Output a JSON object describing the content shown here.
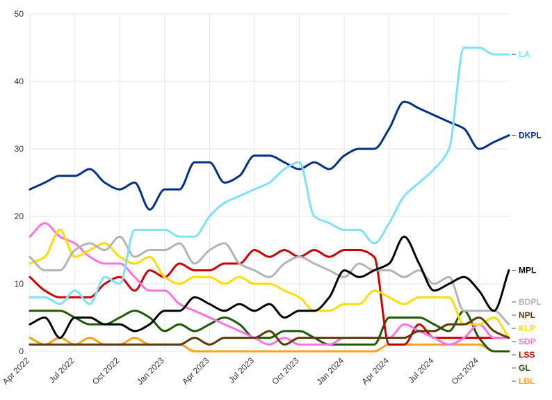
{
  "chart_data": {
    "type": "line",
    "title": "",
    "xlabel": "",
    "ylabel": "",
    "ylim": [
      0,
      50
    ],
    "y_ticks": [
      0,
      10,
      20,
      30,
      40,
      50
    ],
    "x_tick_labels": [
      "Apr 2022",
      "Jul 2022",
      "Oct 2022",
      "Jan 2023",
      "Apr 2023",
      "Jul 2023",
      "Oct 2023",
      "Jan 2024",
      "Apr 2024",
      "Jul 2024",
      "Oct 2024"
    ],
    "x_range": [
      0,
      32
    ],
    "grid": true,
    "legend": "right end labels",
    "series": [
      {
        "name": "LA",
        "color": "#7ee1f7",
        "x": [
          0,
          1,
          2,
          3,
          4,
          5,
          6,
          7,
          8,
          9,
          10,
          11,
          12,
          13,
          14,
          15,
          16,
          17,
          18,
          19,
          20,
          21,
          22,
          23,
          24,
          25,
          26,
          27,
          28,
          29,
          30,
          31,
          32
        ],
        "values": [
          8,
          8,
          7,
          9,
          7,
          11,
          10,
          18,
          18,
          18,
          17,
          17,
          20,
          22,
          23,
          24,
          25,
          27,
          28,
          20,
          19,
          18,
          18,
          16,
          19,
          23,
          25,
          27,
          30,
          45,
          45,
          44,
          44
        ]
      },
      {
        "name": "DKPL",
        "color": "#002f86",
        "x": [
          0,
          1,
          2,
          3,
          4,
          5,
          6,
          7,
          8,
          9,
          10,
          11,
          12,
          13,
          14,
          15,
          16,
          17,
          18,
          19,
          20,
          21,
          22,
          23,
          24,
          25,
          26,
          27,
          28,
          29,
          30,
          31,
          32
        ],
        "values": [
          24,
          25,
          26,
          26,
          27,
          25,
          24,
          25,
          21,
          24,
          24,
          28,
          28,
          25,
          26,
          29,
          29,
          28,
          27,
          28,
          27,
          29,
          30,
          30,
          33,
          37,
          36,
          35,
          34,
          33,
          30,
          31,
          32
        ]
      },
      {
        "name": "MPL",
        "color": "#000000",
        "x": [
          0,
          1,
          2,
          3,
          4,
          5,
          6,
          7,
          8,
          9,
          10,
          11,
          12,
          13,
          14,
          15,
          16,
          17,
          18,
          19,
          20,
          21,
          22,
          23,
          24,
          25,
          26,
          27,
          28,
          29,
          30,
          31,
          32
        ],
        "values": [
          4,
          5,
          2,
          5,
          5,
          4,
          4,
          3,
          4,
          6,
          6,
          8,
          7,
          6,
          7,
          6,
          7,
          5,
          6,
          6,
          8,
          12,
          11,
          12,
          13,
          17,
          13,
          9,
          10,
          11,
          9,
          6,
          12
        ]
      },
      {
        "name": "BDPL",
        "color": "#b4b4b4",
        "x": [
          0,
          1,
          2,
          3,
          4,
          5,
          6,
          7,
          8,
          9,
          10,
          11,
          12,
          13,
          14,
          15,
          16,
          17,
          18,
          19,
          20,
          21,
          22,
          23,
          24,
          25,
          26,
          27,
          28,
          29,
          30,
          31,
          32
        ],
        "values": [
          14,
          12,
          12,
          15,
          16,
          15,
          17,
          14,
          15,
          15,
          16,
          13,
          15,
          16,
          13,
          12,
          11,
          13,
          14,
          13,
          12,
          11,
          13,
          12,
          12,
          11,
          12,
          10,
          11,
          6,
          6,
          6,
          4
        ]
      },
      {
        "name": "NPL",
        "color": "#5a3c0a",
        "x": [
          0,
          1,
          2,
          3,
          4,
          5,
          6,
          7,
          8,
          9,
          10,
          11,
          12,
          13,
          14,
          15,
          16,
          17,
          18,
          19,
          20,
          21,
          22,
          23,
          24,
          25,
          26,
          27,
          28,
          29,
          30,
          31,
          32
        ],
        "values": [
          1,
          1,
          1,
          1,
          1,
          1,
          1,
          1,
          1,
          1,
          1,
          2,
          1,
          2,
          2,
          2,
          3,
          1,
          2,
          2,
          2,
          2,
          2,
          2,
          2,
          2,
          3,
          3,
          4,
          4,
          5,
          3,
          2
        ]
      },
      {
        "name": "KLP",
        "color": "#ffdc00",
        "x": [
          0,
          1,
          2,
          3,
          4,
          5,
          6,
          7,
          8,
          9,
          10,
          11,
          12,
          13,
          14,
          15,
          16,
          17,
          18,
          19,
          20,
          21,
          22,
          23,
          24,
          25,
          26,
          27,
          28,
          29,
          30,
          31,
          32
        ],
        "values": [
          13,
          14,
          18,
          14,
          15,
          16,
          14,
          13,
          14,
          11,
          10,
          11,
          11,
          10,
          11,
          10,
          10,
          9,
          8,
          6,
          6,
          7,
          7,
          9,
          8,
          7,
          8,
          8,
          8,
          4,
          4,
          5,
          2
        ]
      },
      {
        "name": "SDP",
        "color": "#ff73e1",
        "x": [
          0,
          1,
          2,
          3,
          4,
          5,
          6,
          7,
          8,
          9,
          10,
          11,
          12,
          13,
          14,
          15,
          16,
          17,
          18,
          19,
          20,
          21,
          22,
          23,
          24,
          25,
          26,
          27,
          28,
          29,
          30,
          31,
          32
        ],
        "values": [
          17,
          19,
          17,
          16,
          14,
          13,
          13,
          11,
          9,
          9,
          7,
          6,
          5,
          4,
          3,
          2,
          1,
          2,
          1,
          1,
          1,
          2,
          2,
          2,
          2,
          4,
          3,
          2,
          1,
          2,
          4,
          2,
          2
        ]
      },
      {
        "name": "LSS",
        "color": "#c80000",
        "x": [
          0,
          1,
          2,
          3,
          4,
          5,
          6,
          7,
          8,
          9,
          10,
          11,
          12,
          13,
          14,
          15,
          16,
          17,
          18,
          19,
          20,
          21,
          22,
          23,
          24,
          25,
          26,
          27,
          28,
          29,
          30,
          31,
          32
        ],
        "values": [
          11,
          9,
          8,
          8,
          8,
          10,
          11,
          9,
          12,
          11,
          13,
          12,
          12,
          13,
          13,
          15,
          14,
          15,
          14,
          15,
          14,
          15,
          15,
          14,
          1,
          1,
          4,
          2,
          2,
          2,
          2,
          2,
          2
        ]
      },
      {
        "name": "GL",
        "color": "#1e5a00",
        "x": [
          0,
          1,
          2,
          3,
          4,
          5,
          6,
          7,
          8,
          9,
          10,
          11,
          12,
          13,
          14,
          15,
          16,
          17,
          18,
          19,
          20,
          21,
          22,
          23,
          24,
          25,
          26,
          27,
          28,
          29,
          30,
          31,
          32
        ],
        "values": [
          6,
          6,
          6,
          5,
          4,
          4,
          5,
          6,
          5,
          3,
          4,
          3,
          4,
          5,
          4,
          2,
          2,
          3,
          3,
          2,
          1,
          1,
          1,
          1,
          5,
          5,
          5,
          4,
          3,
          6,
          2,
          0,
          0
        ]
      },
      {
        "name": "LBL",
        "color": "#ffa01e",
        "x": [
          0,
          1,
          2,
          3,
          4,
          5,
          6,
          7,
          8,
          9,
          10,
          11,
          12,
          13,
          14,
          15,
          16,
          17,
          18,
          19,
          20,
          21,
          22,
          23,
          24,
          25,
          26,
          27,
          28,
          29,
          30,
          31,
          32
        ],
        "values": [
          2,
          1,
          2,
          1,
          2,
          1,
          1,
          2,
          1,
          1,
          1,
          0,
          0,
          0,
          0,
          0,
          0,
          0,
          0,
          0,
          0,
          0,
          0,
          0,
          1,
          1,
          1,
          1,
          1,
          1,
          1,
          0,
          0
        ]
      }
    ]
  }
}
